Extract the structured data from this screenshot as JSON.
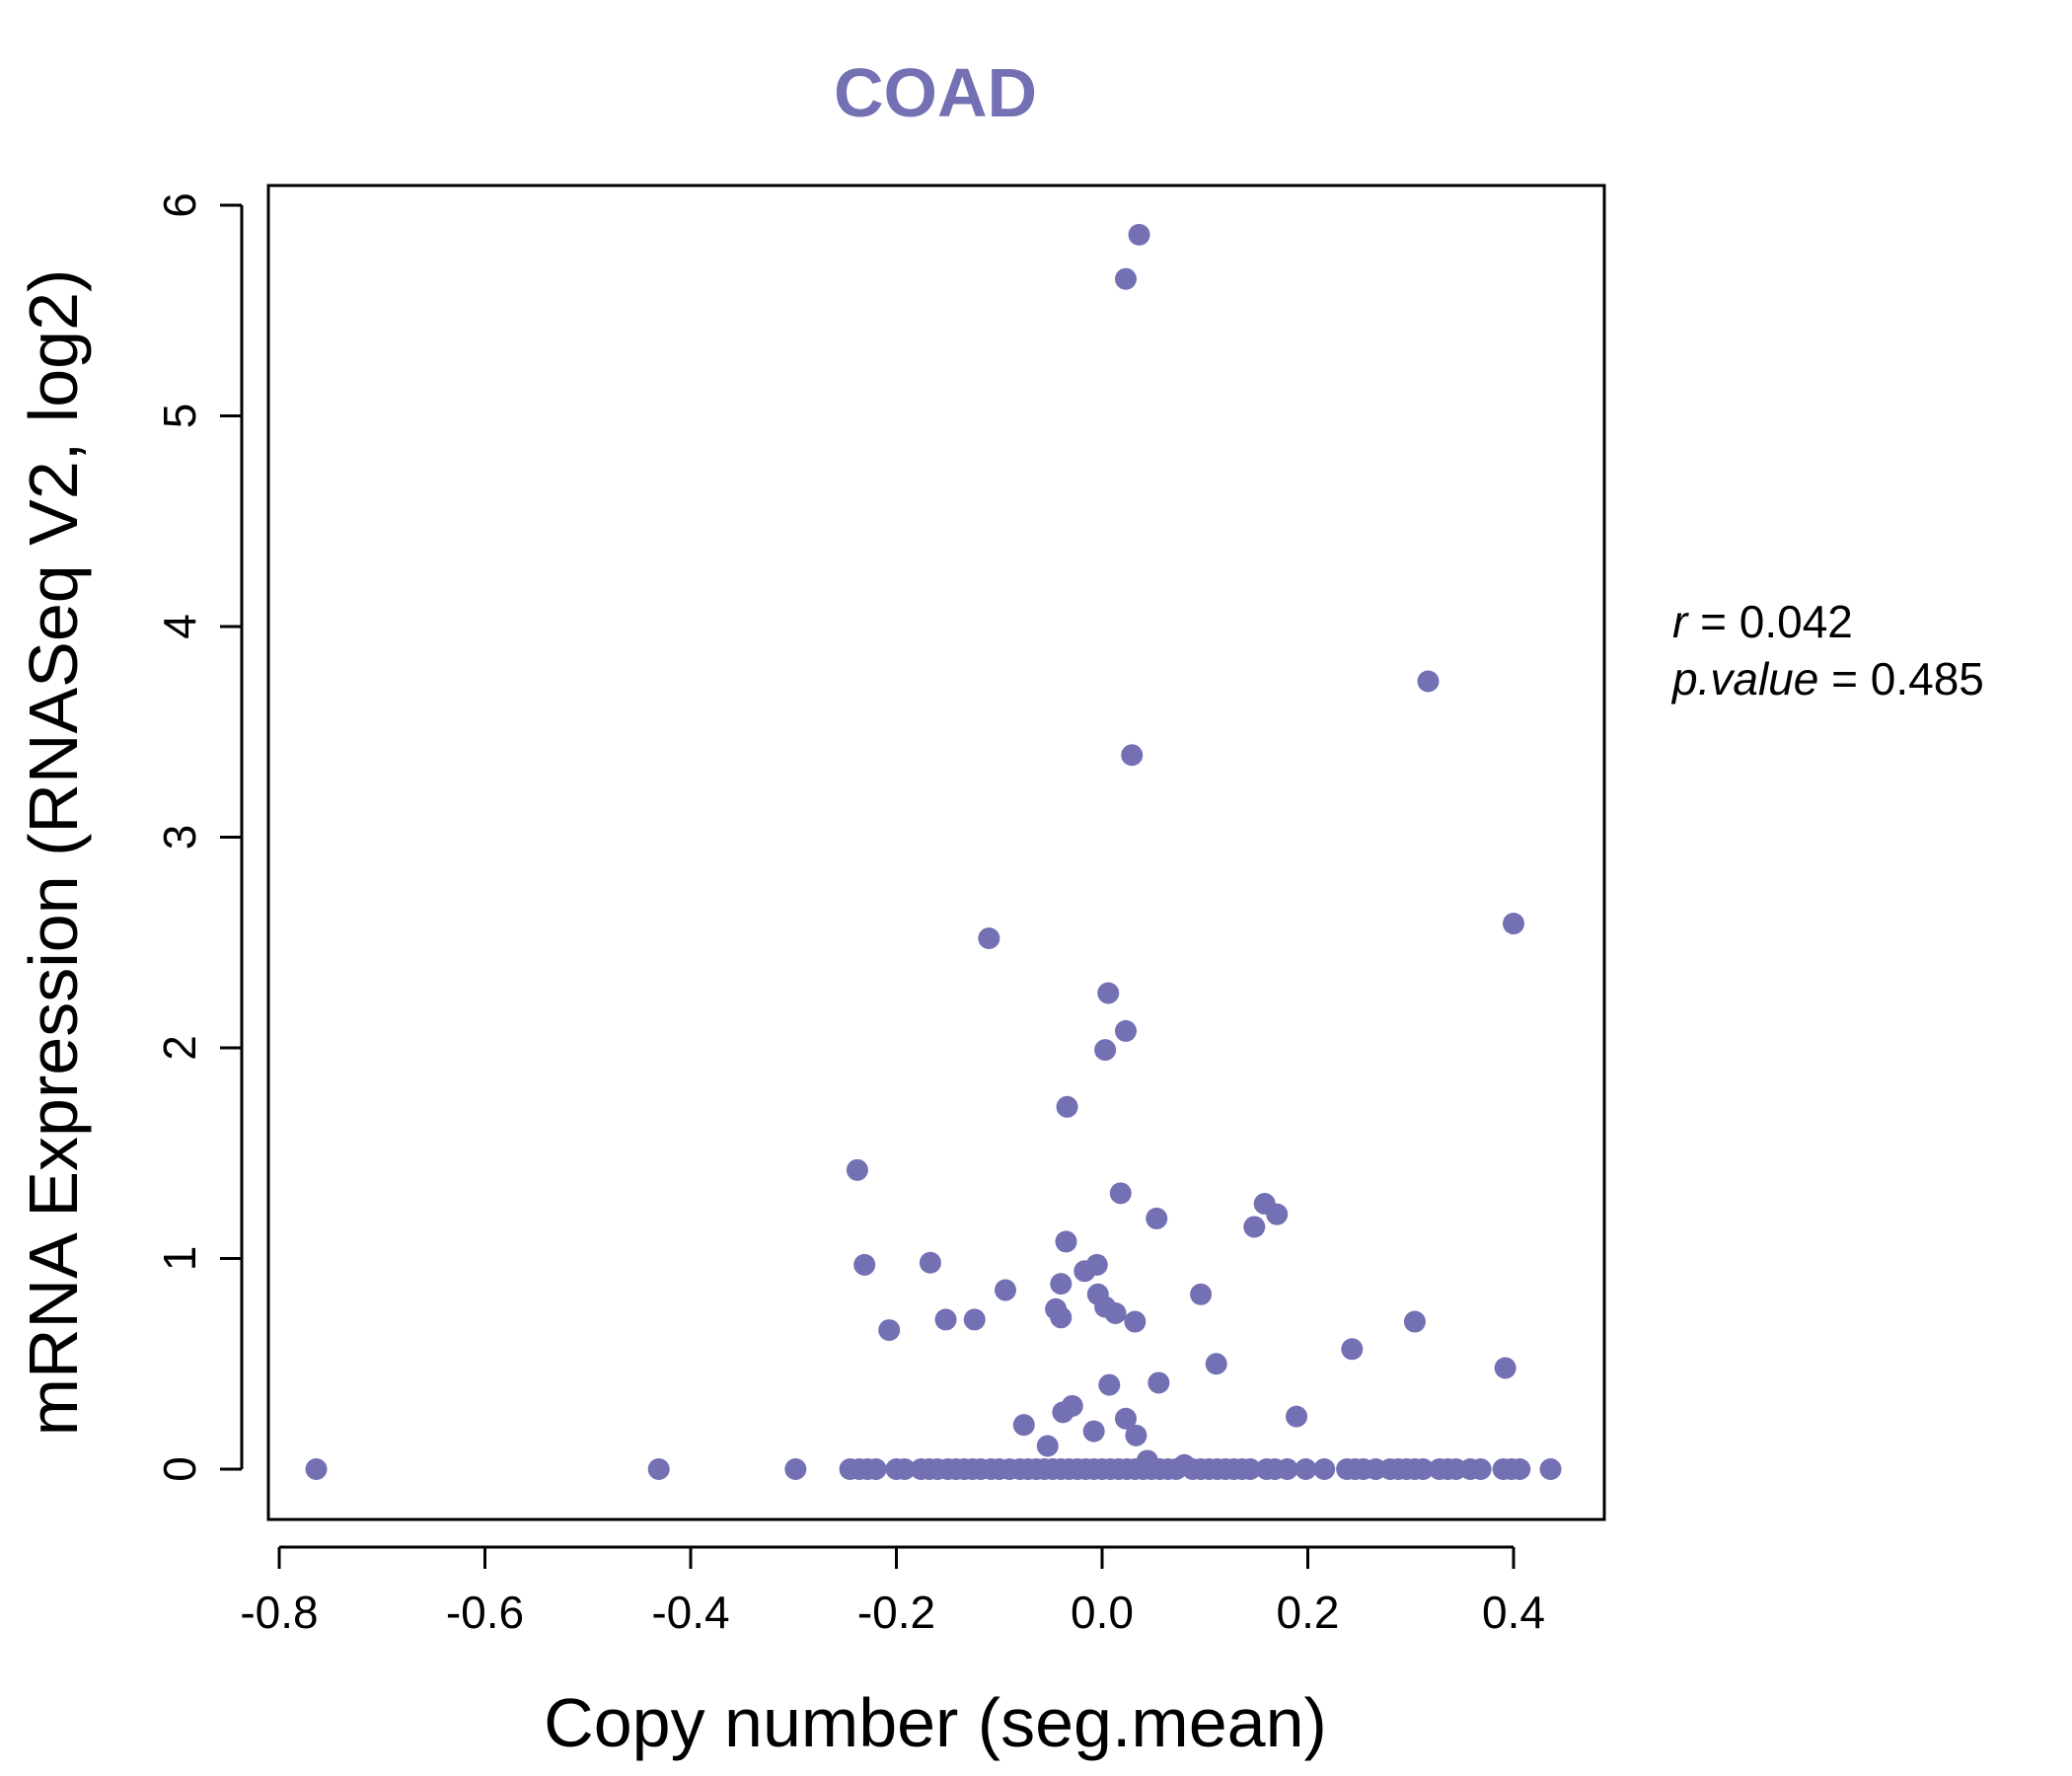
{
  "chart_data": {
    "type": "scatter",
    "title": "COAD",
    "xlabel": "Copy number (seg.mean)",
    "ylabel": "mRNA Expression (RNASeq V2, log2)",
    "xlim": [
      -0.8,
      0.45
    ],
    "ylim": [
      0,
      6
    ],
    "x_ticks": [
      "-0.8",
      "-0.6",
      "-0.4",
      "-0.2",
      "0.0",
      "0.2",
      "0.4"
    ],
    "y_ticks": [
      "0",
      "1",
      "2",
      "3",
      "4",
      "5",
      "6"
    ],
    "grid": false,
    "legend": "none",
    "annotation": {
      "r_label": "r",
      "r_value": "0.042",
      "p_label": "p.value",
      "p_value": "0.485"
    },
    "colors": {
      "points": "#7370b3",
      "title": "#7370b3",
      "axis": "#000000"
    },
    "points": [
      {
        "x": 0.036,
        "y": 5.86
      },
      {
        "x": 0.023,
        "y": 5.65
      },
      {
        "x": 0.317,
        "y": 3.74
      },
      {
        "x": 0.029,
        "y": 3.39
      },
      {
        "x": 0.4,
        "y": 2.59
      },
      {
        "x": -0.11,
        "y": 2.52
      },
      {
        "x": 0.006,
        "y": 2.26
      },
      {
        "x": 0.023,
        "y": 2.08
      },
      {
        "x": 0.003,
        "y": 1.99
      },
      {
        "x": -0.034,
        "y": 1.72
      },
      {
        "x": -0.238,
        "y": 1.42
      },
      {
        "x": 0.018,
        "y": 1.31
      },
      {
        "x": 0.158,
        "y": 1.26
      },
      {
        "x": 0.17,
        "y": 1.21
      },
      {
        "x": 0.053,
        "y": 1.19
      },
      {
        "x": 0.148,
        "y": 1.15
      },
      {
        "x": -0.035,
        "y": 1.08
      },
      {
        "x": -0.167,
        "y": 0.98
      },
      {
        "x": -0.005,
        "y": 0.97
      },
      {
        "x": -0.231,
        "y": 0.97
      },
      {
        "x": -0.017,
        "y": 0.94
      },
      {
        "x": -0.04,
        "y": 0.88
      },
      {
        "x": -0.094,
        "y": 0.85
      },
      {
        "x": -0.004,
        "y": 0.83
      },
      {
        "x": 0.096,
        "y": 0.83
      },
      {
        "x": 0.003,
        "y": 0.77
      },
      {
        "x": -0.045,
        "y": 0.76
      },
      {
        "x": 0.013,
        "y": 0.74
      },
      {
        "x": -0.04,
        "y": 0.72
      },
      {
        "x": -0.152,
        "y": 0.71
      },
      {
        "x": -0.124,
        "y": 0.71
      },
      {
        "x": 0.032,
        "y": 0.7
      },
      {
        "x": 0.304,
        "y": 0.7
      },
      {
        "x": -0.207,
        "y": 0.66
      },
      {
        "x": 0.243,
        "y": 0.57
      },
      {
        "x": 0.111,
        "y": 0.5
      },
      {
        "x": 0.392,
        "y": 0.48
      },
      {
        "x": 0.055,
        "y": 0.41
      },
      {
        "x": 0.007,
        "y": 0.4
      },
      {
        "x": -0.029,
        "y": 0.3
      },
      {
        "x": -0.038,
        "y": 0.27
      },
      {
        "x": 0.189,
        "y": 0.25
      },
      {
        "x": 0.023,
        "y": 0.24
      },
      {
        "x": -0.076,
        "y": 0.21
      },
      {
        "x": -0.008,
        "y": 0.18
      },
      {
        "x": 0.033,
        "y": 0.16
      },
      {
        "x": -0.053,
        "y": 0.11
      },
      {
        "x": 0.044,
        "y": 0.04
      },
      {
        "x": 0.08,
        "y": 0.02
      },
      {
        "x": -0.764,
        "y": 0
      },
      {
        "x": -0.431,
        "y": 0
      },
      {
        "x": -0.298,
        "y": 0
      },
      {
        "x": -0.245,
        "y": 0
      },
      {
        "x": -0.236,
        "y": 0
      },
      {
        "x": -0.228,
        "y": 0
      },
      {
        "x": -0.22,
        "y": 0
      },
      {
        "x": -0.2,
        "y": 0
      },
      {
        "x": -0.192,
        "y": 0
      },
      {
        "x": -0.176,
        "y": 0
      },
      {
        "x": -0.168,
        "y": 0
      },
      {
        "x": -0.16,
        "y": 0
      },
      {
        "x": -0.15,
        "y": 0
      },
      {
        "x": -0.142,
        "y": 0
      },
      {
        "x": -0.134,
        "y": 0
      },
      {
        "x": -0.126,
        "y": 0
      },
      {
        "x": -0.118,
        "y": 0
      },
      {
        "x": -0.108,
        "y": 0
      },
      {
        "x": -0.1,
        "y": 0
      },
      {
        "x": -0.09,
        "y": 0
      },
      {
        "x": -0.08,
        "y": 0
      },
      {
        "x": -0.072,
        "y": 0
      },
      {
        "x": -0.064,
        "y": 0
      },
      {
        "x": -0.056,
        "y": 0
      },
      {
        "x": -0.048,
        "y": 0
      },
      {
        "x": -0.04,
        "y": 0
      },
      {
        "x": -0.032,
        "y": 0
      },
      {
        "x": -0.024,
        "y": 0
      },
      {
        "x": -0.016,
        "y": 0
      },
      {
        "x": -0.008,
        "y": 0
      },
      {
        "x": 0.0,
        "y": 0
      },
      {
        "x": 0.008,
        "y": 0
      },
      {
        "x": 0.016,
        "y": 0
      },
      {
        "x": 0.024,
        "y": 0
      },
      {
        "x": 0.032,
        "y": 0
      },
      {
        "x": 0.04,
        "y": 0
      },
      {
        "x": 0.048,
        "y": 0
      },
      {
        "x": 0.056,
        "y": 0
      },
      {
        "x": 0.064,
        "y": 0
      },
      {
        "x": 0.072,
        "y": 0
      },
      {
        "x": 0.088,
        "y": 0
      },
      {
        "x": 0.096,
        "y": 0
      },
      {
        "x": 0.104,
        "y": 0
      },
      {
        "x": 0.112,
        "y": 0
      },
      {
        "x": 0.12,
        "y": 0
      },
      {
        "x": 0.128,
        "y": 0
      },
      {
        "x": 0.136,
        "y": 0
      },
      {
        "x": 0.144,
        "y": 0
      },
      {
        "x": 0.16,
        "y": 0
      },
      {
        "x": 0.168,
        "y": 0
      },
      {
        "x": 0.18,
        "y": 0
      },
      {
        "x": 0.198,
        "y": 0
      },
      {
        "x": 0.216,
        "y": 0
      },
      {
        "x": 0.238,
        "y": 0
      },
      {
        "x": 0.246,
        "y": 0
      },
      {
        "x": 0.254,
        "y": 0
      },
      {
        "x": 0.266,
        "y": 0
      },
      {
        "x": 0.28,
        "y": 0
      },
      {
        "x": 0.288,
        "y": 0
      },
      {
        "x": 0.296,
        "y": 0
      },
      {
        "x": 0.304,
        "y": 0
      },
      {
        "x": 0.312,
        "y": 0
      },
      {
        "x": 0.328,
        "y": 0
      },
      {
        "x": 0.336,
        "y": 0
      },
      {
        "x": 0.344,
        "y": 0
      },
      {
        "x": 0.358,
        "y": 0
      },
      {
        "x": 0.368,
        "y": 0
      },
      {
        "x": 0.39,
        "y": 0
      },
      {
        "x": 0.398,
        "y": 0
      },
      {
        "x": 0.406,
        "y": 0
      },
      {
        "x": 0.436,
        "y": 0
      }
    ]
  }
}
